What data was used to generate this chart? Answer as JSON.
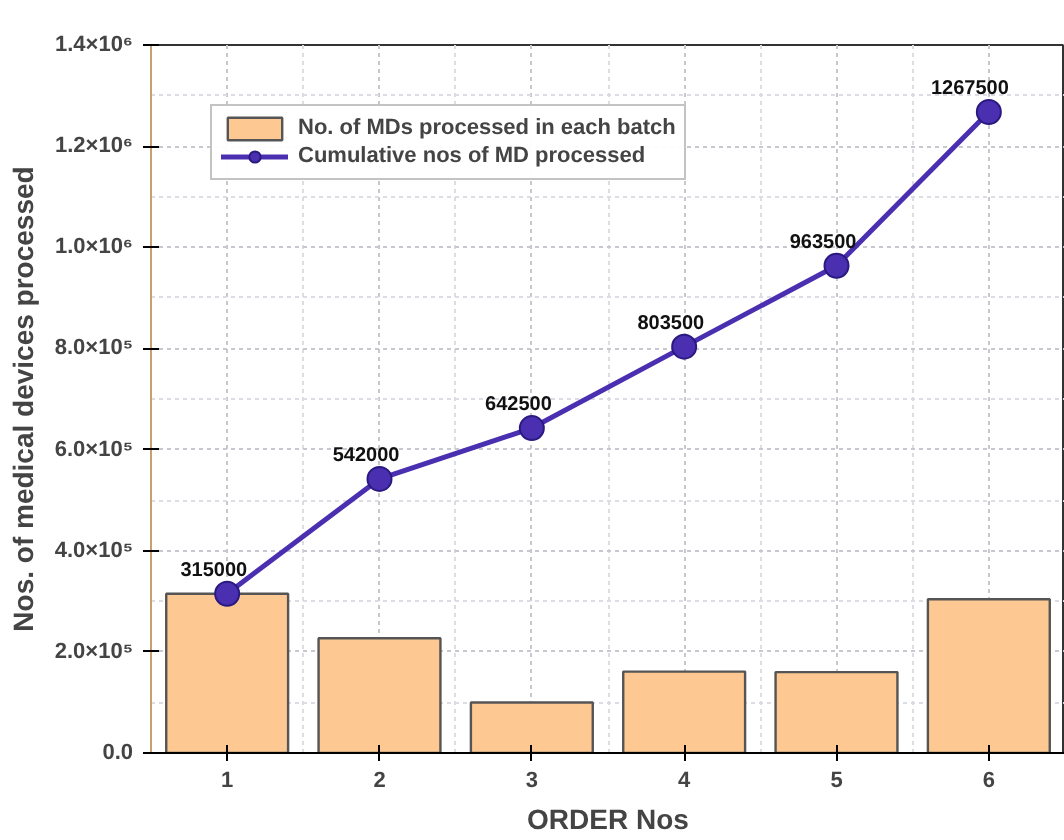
{
  "chart_data": {
    "type": "bar",
    "xlabel": "ORDER Nos",
    "ylabel": "Nos. of medical devices processed",
    "x": [
      1,
      2,
      3,
      4,
      5,
      6
    ],
    "series": [
      {
        "name": "No. of MDs processed in each batch",
        "color": "#fdc891",
        "values": [
          315000,
          227000,
          100000,
          161000,
          160000,
          304000
        ]
      },
      {
        "name": "Cumulative nos of MD processed",
        "type": "line",
        "color": "#4a2fb0",
        "values": [
          315000,
          542000,
          642500,
          803500,
          963500,
          1267500
        ],
        "value_labels": [
          "315000",
          "542000",
          "642500",
          "803500",
          "963500",
          "1267500"
        ],
        "marker": "circle",
        "line_style": "solid"
      }
    ],
    "xlim": [
      0.5,
      6.5
    ],
    "xticks": [
      1,
      2,
      3,
      4,
      5,
      6
    ],
    "ylim": [
      0,
      1400000
    ],
    "yticks": [
      {
        "value": 0,
        "label": "0.0"
      },
      {
        "value": 200000,
        "label": "2.0×10⁵"
      },
      {
        "value": 400000,
        "label": "4.0×10⁵"
      },
      {
        "value": 600000,
        "label": "6.0×10⁵"
      },
      {
        "value": 800000,
        "label": "8.0×10⁵"
      },
      {
        "value": 1000000,
        "label": "1.0×10⁶"
      },
      {
        "value": 1200000,
        "label": "1.2×10⁶"
      },
      {
        "value": 1400000,
        "label": "1.4×10⁶"
      }
    ],
    "grid": true,
    "legend": "top left"
  }
}
